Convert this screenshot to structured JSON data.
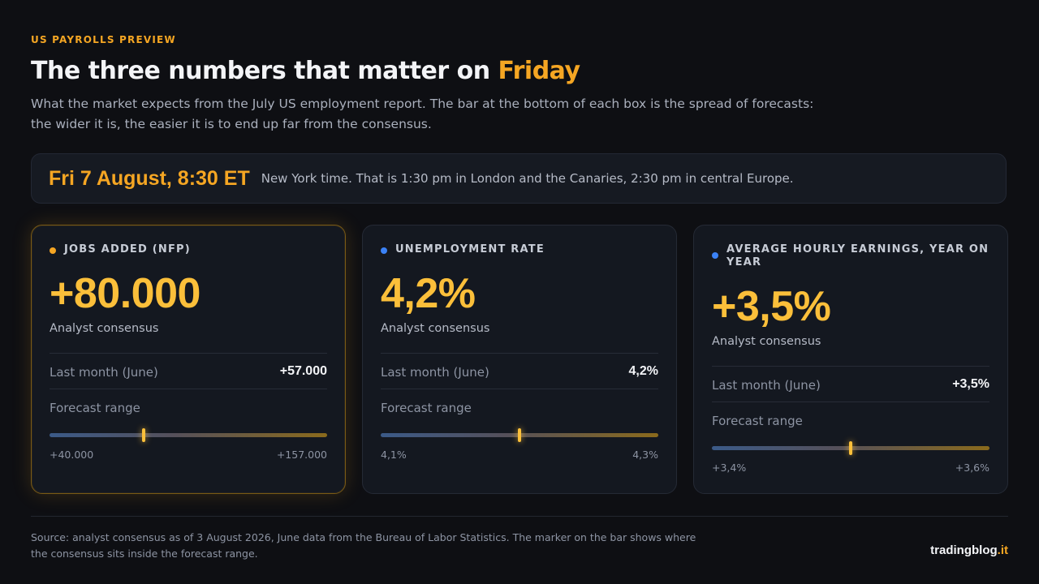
{
  "kicker": "US PAYROLLS PREVIEW",
  "title": {
    "main": "The three numbers that matter on ",
    "accent": "Friday"
  },
  "subtitle": "What the market expects from the July US employment report. The bar at the bottom of each box is the spread of forecasts: the wider it is, the easier it is to end up far from the consensus.",
  "release": {
    "date": "Fri 7 August, 8:30 ET",
    "note": "New York time. That is 1:30 pm in London and the Canaries, 2:30 pm in central Europe."
  },
  "colors": {
    "accent": "#f5a623",
    "value": "#fbbf3a",
    "blue_dot": "#3b82f6",
    "background": "#0e0f13"
  },
  "cards": [
    {
      "label": "JOBS ADDED (NFP)",
      "dot_color": "#f5a623",
      "consensus_value": "+80.000",
      "consensus_label": "Analyst consensus",
      "last_month_label": "Last month (June)",
      "last_month_value": "+57.000",
      "range_label": "Forecast range",
      "range_min": "+40.000",
      "range_max": "+157.000",
      "marker_fraction": 0.34,
      "highlighted": true
    },
    {
      "label": "UNEMPLOYMENT RATE",
      "dot_color": "#3b82f6",
      "consensus_value": "4,2%",
      "consensus_label": "Analyst consensus",
      "last_month_label": "Last month (June)",
      "last_month_value": "4,2%",
      "range_label": "Forecast range",
      "range_min": "4,1%",
      "range_max": "4,3%",
      "marker_fraction": 0.5,
      "highlighted": false
    },
    {
      "label": "AVERAGE HOURLY EARNINGS, YEAR ON YEAR",
      "dot_color": "#3b82f6",
      "consensus_value": "+3,5%",
      "consensus_label": "Analyst consensus",
      "last_month_label": "Last month (June)",
      "last_month_value": "+3,5%",
      "range_label": "Forecast range",
      "range_min": "+3,4%",
      "range_max": "+3,6%",
      "marker_fraction": 0.5,
      "highlighted": false
    }
  ],
  "footer": {
    "source": "Source: analyst consensus as of 3 August 2026, June data from the Bureau of Labor Statistics. The marker on the bar shows where the consensus sits inside the forecast range.",
    "brand_main": "tradingblog",
    "brand_tld": ".it"
  }
}
